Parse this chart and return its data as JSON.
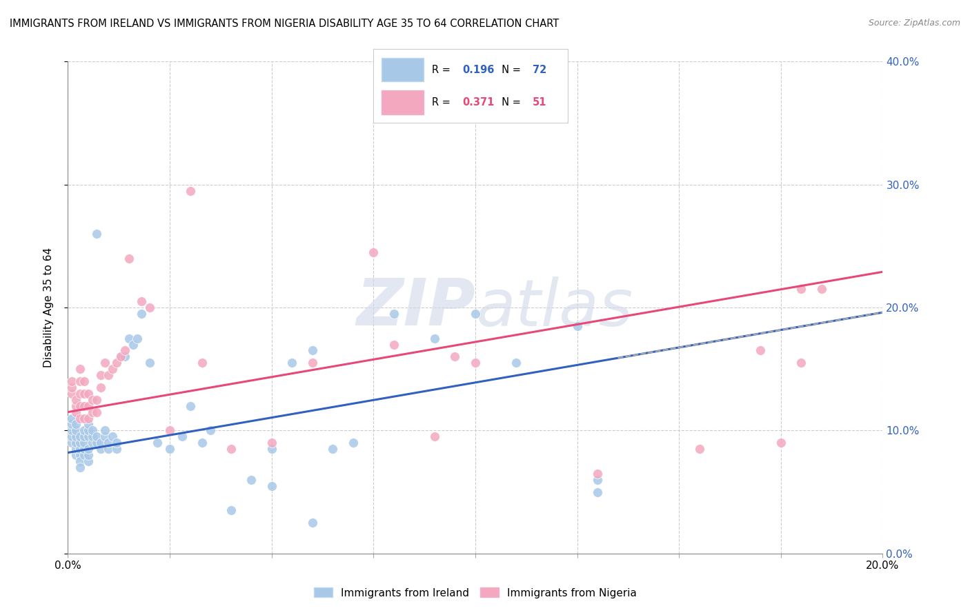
{
  "title": "IMMIGRANTS FROM IRELAND VS IMMIGRANTS FROM NIGERIA DISABILITY AGE 35 TO 64 CORRELATION CHART",
  "source": "Source: ZipAtlas.com",
  "ylabel": "Disability Age 35 to 64",
  "xlim": [
    0.0,
    0.2
  ],
  "ylim": [
    0.0,
    0.4
  ],
  "xticks": [
    0.0,
    0.025,
    0.05,
    0.075,
    0.1,
    0.125,
    0.15,
    0.175,
    0.2
  ],
  "yticks": [
    0.0,
    0.1,
    0.2,
    0.3,
    0.4
  ],
  "legend_label_blue": "Immigrants from Ireland",
  "legend_label_pink": "Immigrants from Nigeria",
  "ireland_color": "#a8c8e8",
  "nigeria_color": "#f4a8c0",
  "ireland_line_color": "#3060c0",
  "nigeria_line_color": "#e84878",
  "watermark": "ZIPatlas",
  "ireland_R": "0.196",
  "ireland_N": "72",
  "nigeria_R": "0.371",
  "nigeria_N": "51",
  "ireland_x": [
    0.001,
    0.001,
    0.001,
    0.001,
    0.001,
    0.002,
    0.002,
    0.002,
    0.002,
    0.002,
    0.002,
    0.003,
    0.003,
    0.003,
    0.003,
    0.003,
    0.003,
    0.004,
    0.004,
    0.004,
    0.004,
    0.004,
    0.005,
    0.005,
    0.005,
    0.005,
    0.005,
    0.005,
    0.006,
    0.006,
    0.006,
    0.007,
    0.007,
    0.007,
    0.008,
    0.008,
    0.009,
    0.009,
    0.01,
    0.01,
    0.011,
    0.012,
    0.012,
    0.013,
    0.014,
    0.015,
    0.016,
    0.017,
    0.018,
    0.02,
    0.022,
    0.025,
    0.028,
    0.03,
    0.033,
    0.035,
    0.04,
    0.045,
    0.05,
    0.055,
    0.06,
    0.065,
    0.07,
    0.08,
    0.09,
    0.1,
    0.11,
    0.125,
    0.13,
    0.13,
    0.05,
    0.06
  ],
  "ireland_y": [
    0.09,
    0.095,
    0.1,
    0.105,
    0.11,
    0.08,
    0.085,
    0.09,
    0.095,
    0.1,
    0.105,
    0.08,
    0.085,
    0.09,
    0.095,
    0.075,
    0.07,
    0.08,
    0.085,
    0.09,
    0.095,
    0.1,
    0.075,
    0.08,
    0.085,
    0.095,
    0.1,
    0.105,
    0.09,
    0.095,
    0.1,
    0.09,
    0.095,
    0.26,
    0.085,
    0.09,
    0.095,
    0.1,
    0.085,
    0.09,
    0.095,
    0.085,
    0.09,
    0.16,
    0.16,
    0.175,
    0.17,
    0.175,
    0.195,
    0.155,
    0.09,
    0.085,
    0.095,
    0.12,
    0.09,
    0.1,
    0.035,
    0.06,
    0.085,
    0.155,
    0.165,
    0.085,
    0.09,
    0.195,
    0.175,
    0.195,
    0.155,
    0.185,
    0.06,
    0.05,
    0.055,
    0.025
  ],
  "nigeria_x": [
    0.001,
    0.001,
    0.001,
    0.002,
    0.002,
    0.002,
    0.003,
    0.003,
    0.003,
    0.003,
    0.003,
    0.004,
    0.004,
    0.004,
    0.004,
    0.005,
    0.005,
    0.005,
    0.006,
    0.006,
    0.007,
    0.007,
    0.008,
    0.008,
    0.009,
    0.01,
    0.011,
    0.012,
    0.013,
    0.014,
    0.015,
    0.018,
    0.02,
    0.025,
    0.03,
    0.033,
    0.04,
    0.05,
    0.06,
    0.075,
    0.08,
    0.09,
    0.095,
    0.1,
    0.13,
    0.155,
    0.17,
    0.175,
    0.18,
    0.18,
    0.185
  ],
  "nigeria_y": [
    0.13,
    0.135,
    0.14,
    0.115,
    0.12,
    0.125,
    0.11,
    0.12,
    0.13,
    0.14,
    0.15,
    0.11,
    0.12,
    0.13,
    0.14,
    0.11,
    0.12,
    0.13,
    0.115,
    0.125,
    0.115,
    0.125,
    0.135,
    0.145,
    0.155,
    0.145,
    0.15,
    0.155,
    0.16,
    0.165,
    0.24,
    0.205,
    0.2,
    0.1,
    0.295,
    0.155,
    0.085,
    0.09,
    0.155,
    0.245,
    0.17,
    0.095,
    0.16,
    0.155,
    0.065,
    0.085,
    0.165,
    0.09,
    0.155,
    0.215,
    0.215
  ]
}
